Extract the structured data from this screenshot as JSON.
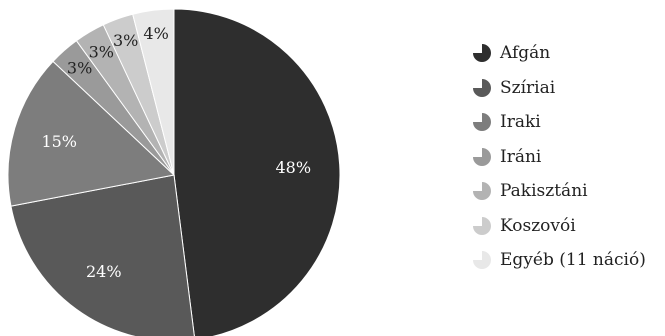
{
  "chart_data": {
    "type": "pie",
    "start_angle_deg": 0,
    "direction": "clockwise",
    "legend_position": "right",
    "slices": [
      {
        "label": "Afgán",
        "value": 48,
        "value_label": "48%",
        "color": "#2e2e2e",
        "label_color": "#ffffff"
      },
      {
        "label": "Szíriai",
        "value": 24,
        "value_label": "24%",
        "color": "#595959",
        "label_color": "#ffffff"
      },
      {
        "label": "Iraki",
        "value": 15,
        "value_label": "15%",
        "color": "#7d7d7d",
        "label_color": "#ffffff"
      },
      {
        "label": "Iráni",
        "value": 3,
        "value_label": "3%",
        "color": "#9a9a9a",
        "label_color": "#222222"
      },
      {
        "label": "Pakisztáni",
        "value": 3,
        "value_label": "3%",
        "color": "#b3b3b3",
        "label_color": "#222222"
      },
      {
        "label": "Koszovói",
        "value": 3,
        "value_label": "3%",
        "color": "#cccccc",
        "label_color": "#222222"
      },
      {
        "label": "Egyéb (11 náció)",
        "value": 4,
        "value_label": "4%",
        "color": "#e8e8e8",
        "label_color": "#222222"
      }
    ]
  }
}
